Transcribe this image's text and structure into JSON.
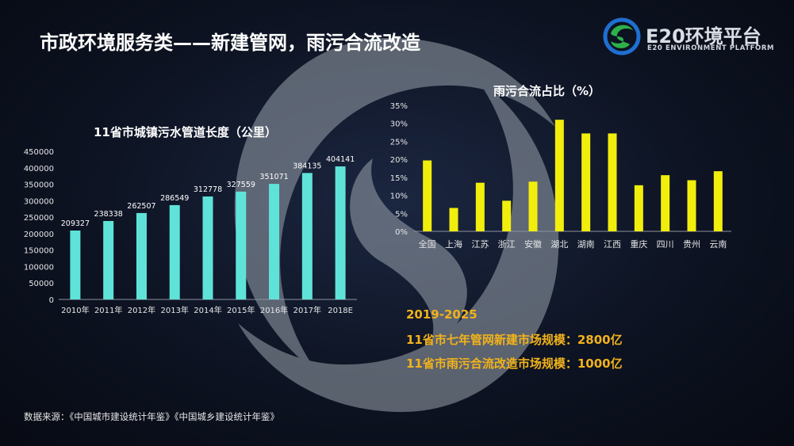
{
  "title": "市政环境服务类——新建管网，雨污合流改造",
  "logo": {
    "brand": "E20环境平台",
    "sub": "E20 ENVIRONMENT PLATFORM",
    "icon": "e20-swirl-logo-icon"
  },
  "colors": {
    "bar_left": "#5fe3d8",
    "bar_right": "#f2ee0c",
    "note": "#f2b21a"
  },
  "chart_data": [
    {
      "type": "bar",
      "title": "11省市城镇污水管道长度（公里）",
      "categories": [
        "2010年",
        "2011年",
        "2012年",
        "2013年",
        "2014年",
        "2015年",
        "2016年",
        "2017年",
        "2018E"
      ],
      "values": [
        209327,
        238338,
        262507,
        286549,
        312778,
        327559,
        351071,
        384135,
        404141
      ],
      "data_labels": [
        "209327",
        "238338",
        "262507",
        "286549",
        "312778",
        "327559",
        "351071",
        "384135",
        "404141"
      ],
      "ylim": [
        0,
        450000
      ],
      "yticks": [
        "0",
        "50000",
        "100000",
        "150000",
        "200000",
        "250000",
        "300000",
        "350000",
        "400000",
        "450000"
      ],
      "grid": false
    },
    {
      "type": "bar",
      "title": "雨污合流占比（%）",
      "categories": [
        "全国",
        "上海",
        "江苏",
        "浙江",
        "安徽",
        "湖北",
        "湖南",
        "江西",
        "重庆",
        "四川",
        "贵州",
        "云南"
      ],
      "values": [
        19.7,
        6.5,
        13.5,
        8.5,
        13.8,
        31,
        27.2,
        27.2,
        12.8,
        15.6,
        14.2,
        16.7
      ],
      "ylim": [
        0,
        35
      ],
      "yticks": [
        "0%",
        "5%",
        "10%",
        "15%",
        "20%",
        "25%",
        "30%",
        "35%"
      ],
      "grid": false
    }
  ],
  "notes": {
    "line1": "2019-2025",
    "line2": "11省市七年管网新建市场规模：2800亿",
    "line3": "11省市雨污合流改造市场规模：1000亿"
  },
  "source": "数据来源：《中国城市建设统计年鉴》《中国城乡建设统计年鉴》"
}
